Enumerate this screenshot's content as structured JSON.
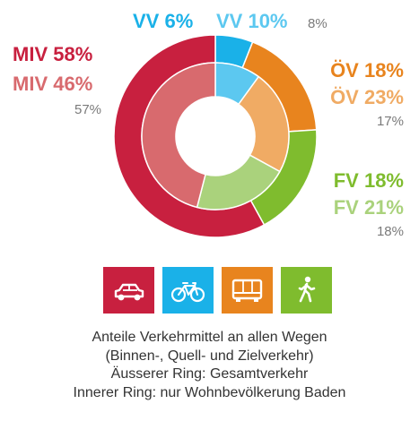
{
  "chart_data": {
    "type": "pie",
    "variant": "nested-donut",
    "categories": [
      "VV",
      "ÖV",
      "FV",
      "MIV"
    ],
    "colors": {
      "VV": {
        "outer": "#1ab1e8",
        "inner": "#5cc8f0",
        "reference": "#7a7a7a"
      },
      "ÖV": {
        "outer": "#e8841e",
        "inner": "#f0ab64",
        "reference": "#7a7a7a"
      },
      "FV": {
        "outer": "#7fbc2e",
        "inner": "#aad27c",
        "reference": "#7a7a7a"
      },
      "MIV": {
        "outer": "#c8203f",
        "inner": "#d86a6e",
        "reference": "#7a7a7a"
      }
    },
    "series": [
      {
        "name": "Äusserer Ring: Gesamtverkehr",
        "ring": "outer",
        "values": [
          6,
          18,
          18,
          58
        ]
      },
      {
        "name": "Innerer Ring: nur Wohnbevölkerung Baden",
        "ring": "inner",
        "values": [
          10,
          23,
          21,
          46
        ]
      },
      {
        "ring": "reference",
        "values": [
          8,
          17,
          18,
          57
        ]
      }
    ],
    "labels": {
      "outer": [
        "VV 6%",
        "ÖV 18%",
        "FV 18%",
        "MIV 58%"
      ],
      "inner": [
        "VV 10%",
        "ÖV 23%",
        "FV 21%",
        "MIV 46%"
      ],
      "reference": [
        "8%",
        "17%",
        "18%",
        "57%"
      ]
    }
  },
  "legend_icons": [
    {
      "name": "car-icon",
      "color": "#c8203f"
    },
    {
      "name": "bicycle-icon",
      "color": "#1ab1e8"
    },
    {
      "name": "bus-icon",
      "color": "#e8841e"
    },
    {
      "name": "pedestrian-icon",
      "color": "#7fbc2e"
    }
  ],
  "caption": {
    "line1": "Anteile Verkehrmittel an allen Wegen",
    "line2": "(Binnen-, Quell- und Zielverkehr)",
    "line3": "Äusserer Ring: Gesamtverkehr",
    "line4": "Innerer Ring: nur Wohnbevölkerung Baden"
  }
}
